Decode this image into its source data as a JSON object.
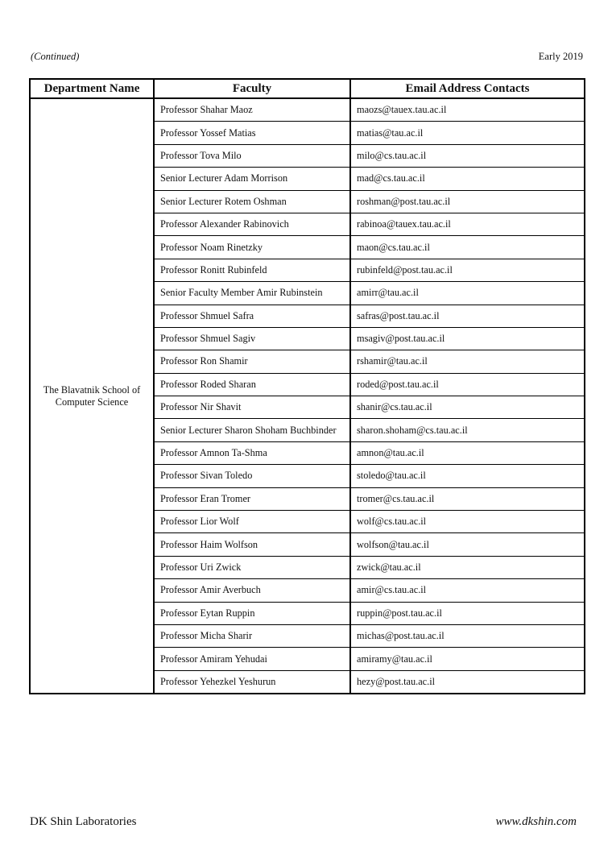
{
  "header": {
    "left": "(Continued)",
    "right": "Early 2019"
  },
  "table": {
    "columns": [
      "Department Name",
      "Faculty",
      "Email Address Contacts"
    ],
    "department": "The Blavatnik School of Computer Science",
    "rows": [
      [
        "Professor Shahar Maoz",
        "maozs@tauex.tau.ac.il"
      ],
      [
        "Professor Yossef Matias",
        "matias@tau.ac.il"
      ],
      [
        "Professor Tova Milo",
        "milo@cs.tau.ac.il"
      ],
      [
        "Senior Lecturer Adam Morrison",
        "mad@cs.tau.ac.il"
      ],
      [
        "Senior Lecturer Rotem Oshman",
        "roshman@post.tau.ac.il"
      ],
      [
        "Professor Alexander Rabinovich",
        "rabinoa@tauex.tau.ac.il"
      ],
      [
        "Professor Noam Rinetzky",
        "maon@cs.tau.ac.il"
      ],
      [
        "Professor Ronitt Rubinfeld",
        "rubinfeld@post.tau.ac.il"
      ],
      [
        "Senior Faculty Member Amir Rubinstein",
        "amirr@tau.ac.il"
      ],
      [
        "Professor Shmuel Safra",
        "safras@post.tau.ac.il"
      ],
      [
        "Professor Shmuel Sagiv",
        "msagiv@post.tau.ac.il"
      ],
      [
        "Professor Ron Shamir",
        "rshamir@tau.ac.il"
      ],
      [
        "Professor Roded Sharan",
        "roded@post.tau.ac.il"
      ],
      [
        "Professor Nir Shavit",
        "shanir@cs.tau.ac.il"
      ],
      [
        "Senior Lecturer Sharon Shoham Buchbinder",
        "sharon.shoham@cs.tau.ac.il"
      ],
      [
        "Professor Amnon Ta-Shma",
        "amnon@tau.ac.il"
      ],
      [
        "Professor Sivan Toledo",
        "stoledo@tau.ac.il"
      ],
      [
        "Professor Eran Tromer",
        "tromer@cs.tau.ac.il"
      ],
      [
        "Professor Lior Wolf",
        "wolf@cs.tau.ac.il"
      ],
      [
        "Professor Haim Wolfson",
        "wolfson@tau.ac.il"
      ],
      [
        "Professor Uri Zwick",
        "zwick@tau.ac.il"
      ],
      [
        "Professor Amir Averbuch",
        "amir@cs.tau.ac.il"
      ],
      [
        "Professor Eytan Ruppin",
        "ruppin@post.tau.ac.il"
      ],
      [
        "Professor Micha Sharir",
        "michas@post.tau.ac.il"
      ],
      [
        "Professor Amiram Yehudai",
        "amiramy@tau.ac.il"
      ],
      [
        "Professor Yehezkel Yeshurun",
        "hezy@post.tau.ac.il"
      ]
    ]
  },
  "footer": {
    "left": "DK Shin Laboratories",
    "right": "www.dkshin.com"
  }
}
